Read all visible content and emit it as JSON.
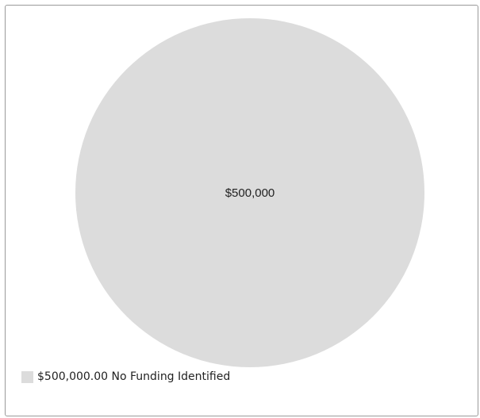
{
  "chart_data": {
    "type": "pie",
    "categories": [
      "No Funding Identified"
    ],
    "values": [
      500000
    ],
    "slice_labels": [
      "$500,000"
    ],
    "colors": [
      "#dcdcdc"
    ],
    "title": "",
    "legend": {
      "placement": "bottom-left",
      "entries": [
        {
          "label": "$500,000.00 No Funding Identified",
          "color": "#dcdcdc"
        }
      ]
    }
  }
}
